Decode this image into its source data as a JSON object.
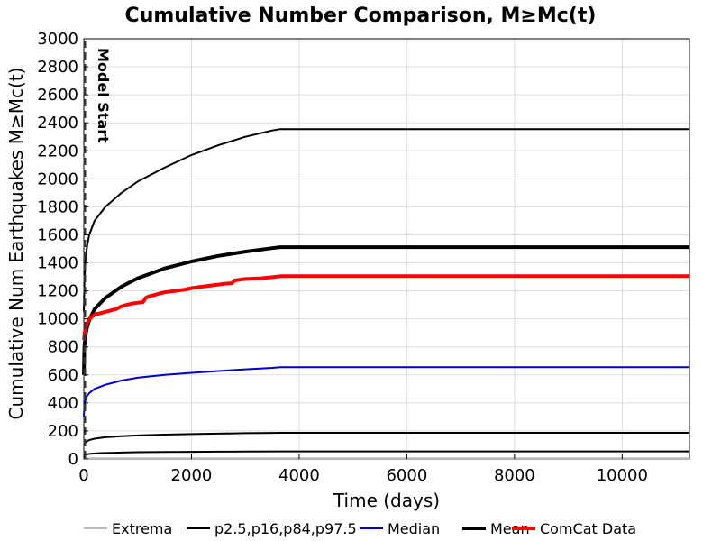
{
  "chart_data": {
    "type": "line",
    "title": "Cumulative Number Comparison, M≥Mc(t)",
    "xlabel": "Time (days)",
    "ylabel": "Cumulative Num Earthquakes M≥Mc(t)",
    "xlim": [
      0,
      11250
    ],
    "ylim": [
      0,
      3000
    ],
    "xticks": [
      0,
      2000,
      4000,
      6000,
      8000,
      10000
    ],
    "yticks": [
      0,
      200,
      400,
      600,
      800,
      1000,
      1200,
      1400,
      1600,
      1800,
      2000,
      2200,
      2400,
      2600,
      2800,
      3000
    ],
    "grid": true,
    "legend_position": "bottom",
    "annotation": {
      "label": "Model Start",
      "x": 0
    },
    "legend": [
      "Extrema",
      "p2.5,p16,p84,p97.5",
      "Median",
      "Mean",
      "ComCat Data"
    ],
    "series": [
      {
        "name": "Extrema",
        "color": "#bbbbbb",
        "x": [
          0,
          11250
        ],
        "y": [
          5,
          5
        ]
      },
      {
        "name": "p2.5,p16,p84,p97.5",
        "color": "#000000",
        "x": [
          0,
          10,
          30,
          60,
          100,
          200,
          400,
          700,
          1000,
          1500,
          2000,
          2500,
          3000,
          3500,
          3650,
          11250
        ],
        "y": [
          1050,
          1250,
          1420,
          1520,
          1600,
          1700,
          1800,
          1900,
          1980,
          2080,
          2170,
          2240,
          2300,
          2345,
          2355,
          2355
        ]
      },
      {
        "name": "p2.5,p16,p84,p97.5",
        "color": "#000000",
        "x": [
          0,
          10,
          50,
          100,
          200,
          400,
          700,
          1000,
          1500,
          2000,
          2500,
          3000,
          3500,
          3650,
          11250
        ],
        "y": [
          100,
          110,
          125,
          135,
          145,
          155,
          162,
          168,
          174,
          178,
          181,
          184,
          186,
          187,
          187
        ]
      },
      {
        "name": "p2.5,p16,p84,p97.5",
        "color": "#000000",
        "x": [
          0,
          20,
          100,
          300,
          700,
          1000,
          1500,
          2000,
          2500,
          3000,
          3650,
          11250
        ],
        "y": [
          25,
          30,
          36,
          42,
          46,
          48,
          50,
          51,
          52,
          53,
          54,
          54
        ]
      },
      {
        "name": "Median",
        "color": "#0000cc",
        "x": [
          0,
          10,
          30,
          60,
          100,
          200,
          400,
          700,
          1000,
          1500,
          2000,
          2500,
          3000,
          3500,
          3650,
          11250
        ],
        "y": [
          300,
          380,
          420,
          450,
          470,
          500,
          530,
          560,
          580,
          600,
          615,
          628,
          640,
          650,
          655,
          655
        ]
      },
      {
        "name": "Mean",
        "color": "#000000",
        "x": [
          0,
          10,
          30,
          60,
          100,
          200,
          400,
          700,
          1000,
          1500,
          2000,
          2500,
          3000,
          3500,
          3650,
          11250
        ],
        "y": [
          600,
          800,
          880,
          940,
          990,
          1070,
          1150,
          1230,
          1290,
          1360,
          1410,
          1450,
          1480,
          1505,
          1512,
          1512
        ]
      },
      {
        "name": "ComCat Data",
        "color": "#ff0000",
        "x": [
          0,
          20,
          50,
          100,
          200,
          300,
          400,
          500,
          600,
          700,
          800,
          900,
          1000,
          1100,
          1150,
          1200,
          1300,
          1400,
          1500,
          1700,
          1900,
          2000,
          2200,
          2400,
          2600,
          2750,
          2800,
          2900,
          3000,
          3300,
          3500,
          3650,
          11250
        ],
        "y": [
          850,
          910,
          960,
          1000,
          1030,
          1040,
          1050,
          1060,
          1070,
          1090,
          1100,
          1110,
          1115,
          1120,
          1150,
          1160,
          1170,
          1180,
          1190,
          1200,
          1210,
          1220,
          1230,
          1240,
          1250,
          1255,
          1275,
          1280,
          1285,
          1290,
          1298,
          1305,
          1305
        ]
      }
    ]
  }
}
